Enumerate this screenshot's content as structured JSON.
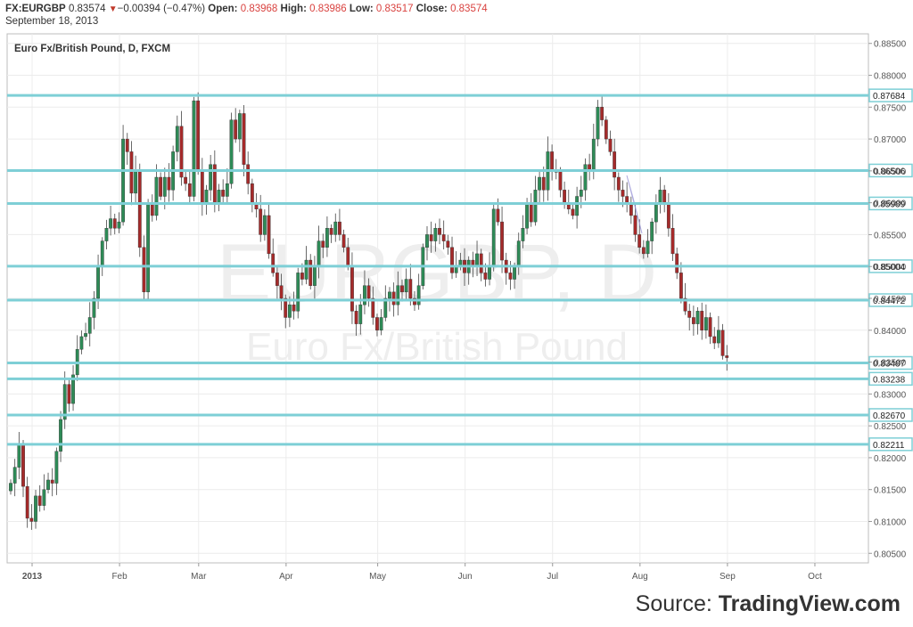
{
  "header": {
    "symbol": "FX:EURGBP",
    "price": "0.83574",
    "arrow": "▼",
    "change": "−0.00394 (−0.47%)",
    "open_label": "Open:",
    "open": "0.83968",
    "high_label": "High:",
    "high": "0.83986",
    "low_label": "Low:",
    "low": "0.83517",
    "close_label": "Close:",
    "close": "0.83574",
    "date": "September 18, 2013"
  },
  "source": {
    "prefix": "Source: ",
    "brand": "TradingView.com"
  },
  "chart_data": {
    "type": "candlestick",
    "title": "Euro Fx/British Pound, D, FXCM",
    "watermark_symbol": "EURGBP, D",
    "watermark_name": "Euro Fx/British Pound",
    "ylim": [
      0.8035,
      0.8865
    ],
    "y_ticks": [
      "0.80500",
      "0.81000",
      "0.81500",
      "0.82000",
      "0.82500",
      "0.83000",
      "0.83500",
      "0.84000",
      "0.84500",
      "0.85000",
      "0.85500",
      "0.86000",
      "0.86500",
      "0.87000",
      "0.87500",
      "0.88000",
      "0.88500"
    ],
    "x_labels": [
      "2013",
      "Feb",
      "Mar",
      "Apr",
      "May",
      "Jun",
      "Jul",
      "Aug",
      "Sep",
      "Oct"
    ],
    "x_label_positions_index": [
      0,
      21,
      40,
      61,
      83,
      104,
      125,
      146,
      167,
      188
    ],
    "grid": true,
    "levels": [
      0.87684,
      0.86506,
      0.85989,
      0.85004,
      0.84472,
      0.83487,
      0.83238,
      0.8267,
      0.82211
    ],
    "level_color": "#7ecfd6",
    "up_color": "#2e8b57",
    "down_color": "#a52a2a",
    "closes": [
      0.816,
      0.8185,
      0.822,
      0.8155,
      0.8105,
      0.81,
      0.814,
      0.8125,
      0.815,
      0.8165,
      0.816,
      0.821,
      0.826,
      0.8315,
      0.8285,
      0.833,
      0.837,
      0.839,
      0.8395,
      0.842,
      0.845,
      0.85,
      0.854,
      0.856,
      0.8575,
      0.856,
      0.857,
      0.87,
      0.868,
      0.8615,
      0.865,
      0.853,
      0.846,
      0.86,
      0.858,
      0.864,
      0.861,
      0.864,
      0.862,
      0.868,
      0.872,
      0.864,
      0.863,
      0.861,
      0.876,
      0.865,
      0.86,
      0.862,
      0.866,
      0.86,
      0.862,
      0.861,
      0.863,
      0.873,
      0.87,
      0.874,
      0.866,
      0.863,
      0.86,
      0.859,
      0.855,
      0.858,
      0.852,
      0.849,
      0.847,
      0.845,
      0.842,
      0.844,
      0.843,
      0.849,
      0.848,
      0.851,
      0.847,
      0.85,
      0.854,
      0.853,
      0.856,
      0.855,
      0.857,
      0.855,
      0.853,
      0.85,
      0.843,
      0.841,
      0.844,
      0.847,
      0.845,
      0.842,
      0.84,
      0.842,
      0.845,
      0.846,
      0.844,
      0.847,
      0.846,
      0.848,
      0.845,
      0.844,
      0.847,
      0.853,
      0.855,
      0.854,
      0.856,
      0.855,
      0.854,
      0.853,
      0.849,
      0.85,
      0.851,
      0.849,
      0.851,
      0.85,
      0.852,
      0.849,
      0.848,
      0.85,
      0.859,
      0.857,
      0.851,
      0.849,
      0.848,
      0.85,
      0.854,
      0.856,
      0.86,
      0.857,
      0.862,
      0.864,
      0.862,
      0.868,
      0.865,
      0.865,
      0.862,
      0.86,
      0.859,
      0.858,
      0.861,
      0.862,
      0.866,
      0.865,
      0.87,
      0.875,
      0.873,
      0.87,
      0.868,
      0.864,
      0.862,
      0.861,
      0.86,
      0.858,
      0.855,
      0.853,
      0.852,
      0.854,
      0.857,
      0.86,
      0.862,
      0.86,
      0.856,
      0.852,
      0.849,
      0.845,
      0.843,
      0.842,
      0.841,
      0.843,
      0.84,
      0.842,
      0.839,
      0.838,
      0.84,
      0.836,
      0.8357
    ]
  }
}
